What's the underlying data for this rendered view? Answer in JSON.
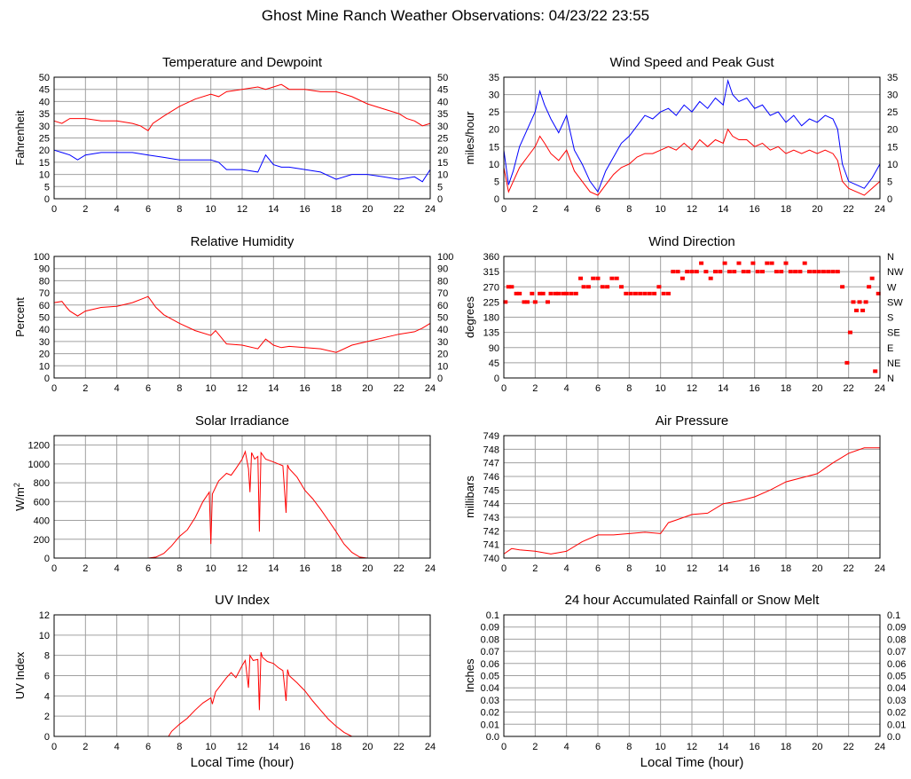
{
  "page": {
    "title": "Ghost Mine Ranch Weather Observations: 04/23/22 23:55"
  },
  "colors": {
    "red": "#ff0000",
    "blue": "#0000ff",
    "grid": "#a0a0a0",
    "frame": "#000000"
  },
  "chart_data": [
    {
      "id": "temperature",
      "type": "line",
      "title": "Temperature and Dewpoint",
      "xlabel": "",
      "ylabel": "Fahrenheit",
      "xlim": [
        0,
        24
      ],
      "ylim": [
        0,
        50
      ],
      "x_ticks": [
        0,
        2,
        4,
        6,
        8,
        10,
        12,
        14,
        16,
        18,
        20,
        22,
        24
      ],
      "y_ticks": [
        0,
        5,
        10,
        15,
        20,
        25,
        30,
        35,
        40,
        45,
        50
      ],
      "right_axis": true,
      "grid": true,
      "series": [
        {
          "color": "#ff0000",
          "x": [
            0,
            0.5,
            1,
            2,
            3,
            4,
            5,
            5.5,
            6,
            6.3,
            7,
            8,
            9,
            10,
            10.5,
            11,
            12,
            13,
            13.5,
            14,
            14.5,
            15,
            16,
            17,
            18,
            19,
            20,
            21,
            22,
            22.5,
            23,
            23.5,
            24
          ],
          "y": [
            32,
            31,
            33,
            33,
            32,
            32,
            31,
            30,
            28,
            31,
            34,
            38,
            41,
            43,
            42,
            44,
            45,
            46,
            45,
            46,
            47,
            45,
            45,
            44,
            44,
            42,
            39,
            37,
            35,
            33,
            32,
            30,
            31
          ]
        },
        {
          "color": "#0000ff",
          "x": [
            0,
            0.5,
            1,
            1.5,
            2,
            3,
            4,
            5,
            6,
            7,
            8,
            9,
            10,
            10.5,
            11,
            12,
            13,
            13.5,
            14,
            14.5,
            15,
            16,
            17,
            18,
            19,
            20,
            21,
            22,
            23,
            23.5,
            24
          ],
          "y": [
            20,
            19,
            18,
            16,
            18,
            19,
            19,
            19,
            18,
            17,
            16,
            16,
            16,
            15,
            12,
            12,
            11,
            18,
            14,
            13,
            13,
            12,
            11,
            8,
            10,
            10,
            9,
            8,
            9,
            7,
            12
          ]
        }
      ]
    },
    {
      "id": "wind-speed",
      "type": "line",
      "title": "Wind Speed and Peak Gust",
      "xlabel": "",
      "ylabel": "miles/hour",
      "xlim": [
        0,
        24
      ],
      "ylim": [
        0,
        35
      ],
      "x_ticks": [
        0,
        2,
        4,
        6,
        8,
        10,
        12,
        14,
        16,
        18,
        20,
        22,
        24
      ],
      "y_ticks": [
        0,
        5,
        10,
        15,
        20,
        25,
        30,
        35
      ],
      "right_axis": true,
      "grid": true,
      "series": [
        {
          "color": "#0000ff",
          "x": [
            0,
            0.3,
            0.6,
            1,
            1.5,
            2,
            2.3,
            2.6,
            3,
            3.5,
            4,
            4.5,
            5,
            5.5,
            6,
            6.5,
            7,
            7.5,
            8,
            8.5,
            9,
            9.5,
            10,
            10.5,
            11,
            11.5,
            12,
            12.5,
            13,
            13.5,
            14,
            14.3,
            14.6,
            15,
            15.5,
            16,
            16.5,
            17,
            17.5,
            18,
            18.5,
            19,
            19.5,
            20,
            20.5,
            21,
            21.3,
            21.6,
            22,
            22.5,
            23,
            23.5,
            24
          ],
          "y": [
            14,
            4,
            8,
            15,
            20,
            25,
            31,
            27,
            23,
            19,
            24,
            14,
            10,
            5,
            2,
            8,
            12,
            16,
            18,
            21,
            24,
            23,
            25,
            26,
            24,
            27,
            25,
            28,
            26,
            29,
            27,
            34,
            30,
            28,
            29,
            26,
            27,
            24,
            25,
            22,
            24,
            21,
            23,
            22,
            24,
            23,
            20,
            10,
            5,
            4,
            3,
            6,
            10
          ]
        },
        {
          "color": "#ff0000",
          "x": [
            0,
            0.3,
            0.6,
            1,
            1.5,
            2,
            2.3,
            2.6,
            3,
            3.5,
            4,
            4.5,
            5,
            5.5,
            6,
            6.5,
            7,
            7.5,
            8,
            8.5,
            9,
            9.5,
            10,
            10.5,
            11,
            11.5,
            12,
            12.5,
            13,
            13.5,
            14,
            14.3,
            14.6,
            15,
            15.5,
            16,
            16.5,
            17,
            17.5,
            18,
            18.5,
            19,
            19.5,
            20,
            20.5,
            21,
            21.3,
            21.6,
            22,
            22.5,
            23,
            23.5,
            24
          ],
          "y": [
            9,
            2,
            5,
            9,
            12,
            15,
            18,
            16,
            13,
            11,
            14,
            8,
            5,
            2,
            1,
            4,
            7,
            9,
            10,
            12,
            13,
            13,
            14,
            15,
            14,
            16,
            14,
            17,
            15,
            17,
            16,
            20,
            18,
            17,
            17,
            15,
            16,
            14,
            15,
            13,
            14,
            13,
            14,
            13,
            14,
            13,
            11,
            5,
            3,
            2,
            1,
            3,
            5
          ]
        }
      ]
    },
    {
      "id": "humidity",
      "type": "line",
      "title": "Relative Humidity",
      "xlabel": "",
      "ylabel": "Percent",
      "xlim": [
        0,
        24
      ],
      "ylim": [
        0,
        100
      ],
      "x_ticks": [
        0,
        2,
        4,
        6,
        8,
        10,
        12,
        14,
        16,
        18,
        20,
        22,
        24
      ],
      "y_ticks": [
        0,
        10,
        20,
        30,
        40,
        50,
        60,
        70,
        80,
        90,
        100
      ],
      "right_axis": true,
      "grid": true,
      "series": [
        {
          "color": "#ff0000",
          "x": [
            0,
            0.5,
            0.8,
            1,
            1.5,
            2,
            3,
            4,
            5,
            6,
            6.5,
            7,
            8,
            9,
            10,
            10.3,
            11,
            12,
            13,
            13.5,
            14,
            14.5,
            15,
            16,
            17,
            18,
            19,
            20,
            21,
            22,
            23,
            23.5,
            24
          ],
          "y": [
            62,
            63,
            58,
            55,
            51,
            55,
            58,
            59,
            62,
            67,
            58,
            52,
            45,
            39,
            35,
            39,
            28,
            27,
            24,
            32,
            27,
            25,
            26,
            25,
            24,
            21,
            27,
            30,
            33,
            36,
            38,
            41,
            45
          ]
        }
      ]
    },
    {
      "id": "wind-direction",
      "type": "scatter",
      "title": "Wind Direction",
      "xlabel": "",
      "ylabel": "degrees",
      "xlim": [
        0,
        24
      ],
      "ylim": [
        0,
        360
      ],
      "x_ticks": [
        0,
        2,
        4,
        6,
        8,
        10,
        12,
        14,
        16,
        18,
        20,
        22,
        24
      ],
      "y_ticks": [
        0,
        45,
        90,
        135,
        180,
        225,
        270,
        315,
        360
      ],
      "right_tick_labels": [
        "N",
        "NE",
        "E",
        "SE",
        "S",
        "SW",
        "W",
        "NW",
        "N"
      ],
      "grid": true,
      "series": [
        {
          "color": "#ff0000",
          "x": [
            0.1,
            0.3,
            0.5,
            0.8,
            1.0,
            1.3,
            1.5,
            1.8,
            2.0,
            2.3,
            2.5,
            2.8,
            3.0,
            3.3,
            3.5,
            3.8,
            4.0,
            4.3,
            4.6,
            4.9,
            5.1,
            5.4,
            5.7,
            6.0,
            6.3,
            6.6,
            6.9,
            7.2,
            7.5,
            7.8,
            8.1,
            8.4,
            8.7,
            9.0,
            9.3,
            9.6,
            9.9,
            10.2,
            10.5,
            10.8,
            11.1,
            11.4,
            11.7,
            12.0,
            12.3,
            12.6,
            12.9,
            13.2,
            13.5,
            13.8,
            14.1,
            14.4,
            14.7,
            15.0,
            15.3,
            15.6,
            15.9,
            16.2,
            16.5,
            16.8,
            17.1,
            17.4,
            17.7,
            18.0,
            18.3,
            18.6,
            18.9,
            19.2,
            19.5,
            19.8,
            20.1,
            20.4,
            20.7,
            21.0,
            21.3,
            21.6,
            21.9,
            22.1,
            22.3,
            22.5,
            22.7,
            22.9,
            23.1,
            23.3,
            23.5,
            23.7,
            23.9
          ],
          "y": [
            225,
            270,
            270,
            250,
            250,
            225,
            225,
            250,
            225,
            250,
            250,
            225,
            250,
            250,
            250,
            250,
            250,
            250,
            250,
            295,
            270,
            270,
            295,
            295,
            270,
            270,
            295,
            295,
            270,
            250,
            250,
            250,
            250,
            250,
            250,
            250,
            270,
            250,
            250,
            315,
            315,
            295,
            315,
            315,
            315,
            340,
            315,
            295,
            315,
            315,
            340,
            315,
            315,
            340,
            315,
            315,
            340,
            315,
            315,
            340,
            340,
            315,
            315,
            340,
            315,
            315,
            315,
            340,
            315,
            315,
            315,
            315,
            315,
            315,
            315,
            270,
            45,
            135,
            225,
            200,
            225,
            200,
            225,
            270,
            295,
            20,
            250
          ]
        }
      ]
    },
    {
      "id": "solar",
      "type": "line",
      "title": "Solar Irradiance",
      "xlabel": "",
      "ylabel": "W/m",
      "ylabel_sup": "2",
      "xlim": [
        0,
        24
      ],
      "ylim": [
        0,
        1300
      ],
      "x_ticks": [
        0,
        2,
        4,
        6,
        8,
        10,
        12,
        14,
        16,
        18,
        20,
        22,
        24
      ],
      "y_ticks": [
        0,
        200,
        400,
        600,
        800,
        1000,
        1200
      ],
      "right_axis": false,
      "grid": true,
      "series": [
        {
          "color": "#ff0000",
          "x": [
            0,
            6,
            6.5,
            7,
            7.5,
            8,
            8.5,
            9,
            9.5,
            9.9,
            10.0,
            10.1,
            10.5,
            11,
            11.3,
            11.6,
            12,
            12.2,
            12.4,
            12.5,
            12.6,
            12.8,
            13.0,
            13.1,
            13.2,
            13.5,
            14,
            14.3,
            14.6,
            14.8,
            14.9,
            15.0,
            15.5,
            16,
            16.5,
            17,
            17.5,
            18,
            18.5,
            19,
            19.5,
            20,
            24
          ],
          "y": [
            0,
            0,
            10,
            50,
            130,
            230,
            300,
            430,
            600,
            700,
            150,
            680,
            820,
            900,
            880,
            950,
            1050,
            1130,
            950,
            700,
            1120,
            1050,
            1080,
            280,
            1120,
            1050,
            1020,
            1000,
            980,
            480,
            990,
            950,
            860,
            720,
            630,
            520,
            400,
            280,
            150,
            60,
            10,
            0,
            0
          ]
        }
      ]
    },
    {
      "id": "pressure",
      "type": "line",
      "title": "Air Pressure",
      "xlabel": "",
      "ylabel": "millibars",
      "xlim": [
        0,
        24
      ],
      "ylim": [
        740,
        749
      ],
      "x_ticks": [
        0,
        2,
        4,
        6,
        8,
        10,
        12,
        14,
        16,
        18,
        20,
        22,
        24
      ],
      "y_ticks": [
        740,
        741,
        742,
        743,
        744,
        745,
        746,
        747,
        748,
        749
      ],
      "right_axis": false,
      "grid": true,
      "series": [
        {
          "color": "#ff0000",
          "x": [
            0,
            0.5,
            1,
            2,
            3,
            3.5,
            4,
            5,
            6,
            7,
            8,
            9,
            10,
            10.5,
            11,
            12,
            13,
            14,
            15,
            16,
            17,
            18,
            19,
            20,
            21,
            22,
            23,
            24
          ],
          "y": [
            740.3,
            740.7,
            740.6,
            740.5,
            740.3,
            740.4,
            740.5,
            741.2,
            741.7,
            741.7,
            741.8,
            741.9,
            741.8,
            742.6,
            742.8,
            743.2,
            743.3,
            744.0,
            744.2,
            744.5,
            745.0,
            745.6,
            745.9,
            746.2,
            747.0,
            747.7,
            748.1,
            748.1
          ]
        }
      ]
    },
    {
      "id": "uv",
      "type": "line",
      "title": "UV Index",
      "xlabel": "Local Time (hour)",
      "ylabel": "UV Index",
      "xlim": [
        0,
        24
      ],
      "ylim": [
        0,
        12
      ],
      "x_ticks": [
        0,
        2,
        4,
        6,
        8,
        10,
        12,
        14,
        16,
        18,
        20,
        22,
        24
      ],
      "y_ticks": [
        0,
        2,
        4,
        6,
        8,
        10,
        12
      ],
      "right_axis": false,
      "grid": true,
      "series": [
        {
          "color": "#ff0000",
          "x": [
            0,
            7.3,
            7.5,
            8,
            8.5,
            9,
            9.5,
            10,
            10.1,
            10.3,
            10.6,
            11,
            11.3,
            11.6,
            12,
            12.2,
            12.4,
            12.5,
            12.7,
            13,
            13.1,
            13.2,
            13.3,
            13.6,
            14,
            14.3,
            14.6,
            14.8,
            14.9,
            15,
            15.5,
            16,
            16.5,
            17,
            17.5,
            18,
            18.5,
            19,
            24
          ],
          "y": [
            0,
            0,
            0.5,
            1.2,
            1.8,
            2.6,
            3.3,
            3.8,
            3.2,
            4.4,
            5.0,
            5.8,
            6.3,
            5.8,
            7.0,
            7.5,
            4.8,
            8.0,
            7.5,
            7.6,
            2.6,
            8.3,
            7.8,
            7.4,
            7.2,
            6.8,
            6.5,
            3.5,
            6.6,
            6.0,
            5.3,
            4.5,
            3.5,
            2.6,
            1.7,
            1.0,
            0.4,
            0,
            0
          ]
        }
      ]
    },
    {
      "id": "rainfall",
      "type": "line",
      "title": "24 hour Accumulated Rainfall or Snow Melt",
      "xlabel": "Local Time (hour)",
      "ylabel": "Inches",
      "xlim": [
        0,
        24
      ],
      "ylim": [
        0,
        0.1
      ],
      "x_ticks": [
        0,
        2,
        4,
        6,
        8,
        10,
        12,
        14,
        16,
        18,
        20,
        22,
        24
      ],
      "y_ticks": [
        "0.0",
        "0.01",
        "0.02",
        "0.03",
        "0.04",
        "0.05",
        "0.06",
        "0.07",
        "0.08",
        "0.09",
        "0.1"
      ],
      "right_axis": true,
      "grid": true,
      "series": [
        {
          "color": "#ff0000",
          "x": [
            0,
            24
          ],
          "y": [
            0,
            0
          ]
        }
      ]
    }
  ]
}
